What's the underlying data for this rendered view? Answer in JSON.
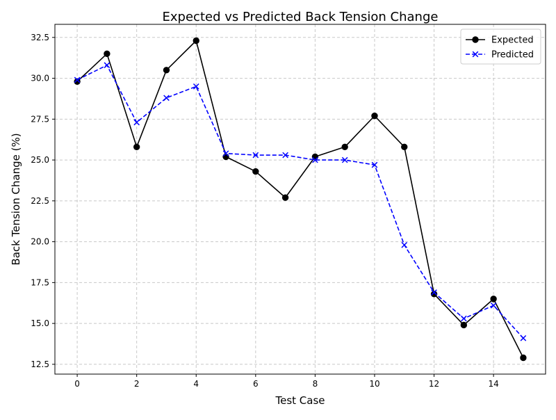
{
  "chart_data": {
    "type": "line",
    "title": "Expected vs Predicted Back Tension Change",
    "xlabel": "Test Case",
    "ylabel": "Back Tension Change (%)",
    "x": [
      0,
      1,
      2,
      3,
      4,
      5,
      6,
      7,
      8,
      9,
      10,
      11,
      12,
      13,
      14,
      15
    ],
    "series": [
      {
        "name": "Expected",
        "color": "#000000",
        "marker": "circle",
        "linestyle": "solid",
        "values": [
          29.8,
          31.5,
          25.8,
          30.5,
          32.3,
          25.2,
          24.3,
          22.7,
          25.2,
          25.8,
          27.7,
          25.8,
          16.8,
          14.9,
          16.5,
          12.9
        ]
      },
      {
        "name": "Predicted",
        "color": "#0000ff",
        "marker": "x",
        "linestyle": "dashed",
        "values": [
          29.9,
          30.8,
          27.3,
          28.8,
          29.5,
          25.4,
          25.3,
          25.3,
          25.0,
          25.0,
          24.7,
          19.8,
          16.9,
          15.3,
          16.1,
          14.1
        ]
      }
    ],
    "xticks": [
      0,
      2,
      4,
      6,
      8,
      10,
      12,
      14
    ],
    "xtick_labels": [
      "0",
      "2",
      "4",
      "6",
      "8",
      "10",
      "12",
      "14"
    ],
    "yticks": [
      12.5,
      15.0,
      17.5,
      20.0,
      22.5,
      25.0,
      27.5,
      30.0,
      32.5
    ],
    "ytick_labels": [
      "12.5",
      "15.0",
      "17.5",
      "20.0",
      "22.5",
      "25.0",
      "27.5",
      "30.0",
      "32.5"
    ],
    "xlim": [
      -0.75,
      15.75
    ],
    "ylim": [
      11.9,
      33.3
    ],
    "grid": true,
    "grid_color": "#c8c8c8",
    "legend_position": "upper-right"
  }
}
